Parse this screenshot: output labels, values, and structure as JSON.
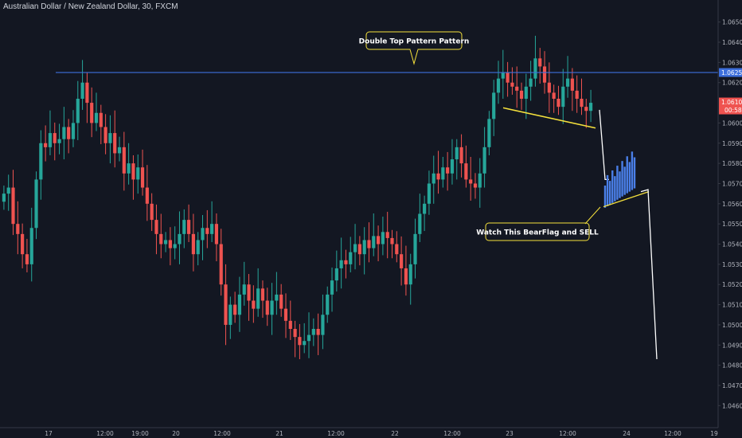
{
  "title": "Australian Dollar / New Zealand Dollar, 30, FXCM",
  "chart_data": {
    "type": "candlestick",
    "symbol": "AUDNZD",
    "interval": "30",
    "source": "FXCM",
    "ylim": [
      1.0455,
      1.0655
    ],
    "y_ticks": [
      "1.06500",
      "1.06400",
      "1.06300",
      "1.06200",
      "1.06000",
      "1.05900",
      "1.05800",
      "1.05700",
      "1.05600",
      "1.05500",
      "1.05400",
      "1.05300",
      "1.05200",
      "1.05100",
      "1.05000",
      "1.04900",
      "1.04800",
      "1.04700",
      "1.04600"
    ],
    "x_ticks": [
      "17",
      "12:00",
      "19:00",
      "20",
      "12:00",
      "21",
      "12:00",
      "22",
      "12:00",
      "23",
      "12:00",
      "24",
      "12:00",
      "19"
    ],
    "price_labels": {
      "resistance": "1.06250",
      "last": "1.06104",
      "countdown": "00:58"
    },
    "resistance_level": 1.0625,
    "annotations": [
      "Double Top Pattern Pattern",
      "Watch This BearFlag and SELL"
    ],
    "colors": {
      "up": "#26a69a",
      "down": "#ef5350",
      "background": "#131722",
      "resistance": "#3d6fdc",
      "trendline": "#f5e13c",
      "projection": "#ffffff",
      "flag": "#4a7fe8"
    },
    "series": [
      {
        "name": "price",
        "path": [
          [
            1.0565,
            "f"
          ],
          [
            1.0568,
            "f"
          ],
          [
            1.055,
            "f"
          ],
          [
            1.0545,
            "f"
          ],
          [
            1.0535,
            "f"
          ],
          [
            1.053,
            "f"
          ],
          [
            1.0548,
            "f"
          ],
          [
            1.0572,
            "f"
          ],
          [
            1.059,
            "f"
          ],
          [
            1.0588,
            "f"
          ],
          [
            1.0595,
            "f"
          ],
          [
            1.059,
            "f"
          ],
          [
            1.0592,
            "f"
          ],
          [
            1.0598,
            "f"
          ],
          [
            1.0592,
            "f"
          ],
          [
            1.06,
            "f"
          ],
          [
            1.0612,
            "f"
          ],
          [
            1.062,
            "f"
          ],
          [
            1.061,
            "f"
          ],
          [
            1.06,
            "f"
          ],
          [
            1.0605,
            "f"
          ],
          [
            1.0598,
            "f"
          ],
          [
            1.059,
            "f"
          ],
          [
            1.0595,
            "f"
          ],
          [
            1.0585,
            "f"
          ],
          [
            1.0588,
            "f"
          ],
          [
            1.0575,
            "f"
          ],
          [
            1.058,
            "f"
          ],
          [
            1.0572,
            "f"
          ],
          [
            1.0578,
            "f"
          ],
          [
            1.0568,
            "f"
          ],
          [
            1.056,
            "f"
          ],
          [
            1.0552,
            "f"
          ],
          [
            1.0545,
            "f"
          ],
          [
            1.054,
            "f"
          ],
          [
            1.0542,
            "f"
          ],
          [
            1.0538,
            "f"
          ],
          [
            1.054,
            "f"
          ],
          [
            1.0545,
            "f"
          ],
          [
            1.0552,
            "f"
          ],
          [
            1.0545,
            "f"
          ],
          [
            1.0535,
            "f"
          ],
          [
            1.0542,
            "f"
          ],
          [
            1.0548,
            "f"
          ],
          [
            1.0545,
            "f"
          ],
          [
            1.055,
            "f"
          ],
          [
            1.054,
            "f"
          ],
          [
            1.052,
            "f"
          ],
          [
            1.05,
            "f"
          ],
          [
            1.051,
            "f"
          ],
          [
            1.0505,
            "f"
          ],
          [
            1.0515,
            "f"
          ],
          [
            1.052,
            "f"
          ],
          [
            1.0512,
            "f"
          ],
          [
            1.0508,
            "f"
          ],
          [
            1.0518,
            "f"
          ],
          [
            1.0512,
            "f"
          ],
          [
            1.0505,
            "f"
          ],
          [
            1.0512,
            "f"
          ],
          [
            1.0515,
            "f"
          ],
          [
            1.0508,
            "f"
          ],
          [
            1.0502,
            "f"
          ],
          [
            1.0498,
            "f"
          ],
          [
            1.0494,
            "f"
          ],
          [
            1.049,
            "f"
          ],
          [
            1.0492,
            "f"
          ],
          [
            1.0495,
            "f"
          ],
          [
            1.0498,
            "f"
          ],
          [
            1.0495,
            "f"
          ],
          [
            1.0505,
            "f"
          ],
          [
            1.0515,
            "f"
          ],
          [
            1.0522,
            "f"
          ],
          [
            1.0528,
            "f"
          ],
          [
            1.0532,
            "f"
          ],
          [
            1.053,
            "f"
          ],
          [
            1.0536,
            "f"
          ],
          [
            1.054,
            "f"
          ],
          [
            1.0535,
            "f"
          ],
          [
            1.0542,
            "f"
          ],
          [
            1.0538,
            "f"
          ],
          [
            1.0544,
            "f"
          ],
          [
            1.054,
            "f"
          ],
          [
            1.0546,
            "f"
          ],
          [
            1.0543,
            "f"
          ],
          [
            1.054,
            "f"
          ],
          [
            1.0535,
            "f"
          ],
          [
            1.0528,
            "f"
          ],
          [
            1.052,
            "f"
          ],
          [
            1.053,
            "f"
          ],
          [
            1.0545,
            "f"
          ],
          [
            1.0555,
            "f"
          ],
          [
            1.056,
            "f"
          ],
          [
            1.057,
            "f"
          ],
          [
            1.0575,
            "f"
          ],
          [
            1.0572,
            "f"
          ],
          [
            1.0578,
            "f"
          ],
          [
            1.0575,
            "f"
          ],
          [
            1.0582,
            "f"
          ],
          [
            1.0588,
            "f"
          ],
          [
            1.058,
            "f"
          ],
          [
            1.0572,
            "f"
          ],
          [
            1.057,
            "f"
          ],
          [
            1.0568,
            "f"
          ],
          [
            1.0575,
            "f"
          ],
          [
            1.0588,
            "f"
          ],
          [
            1.0602,
            "f"
          ],
          [
            1.0615,
            "f"
          ],
          [
            1.0622,
            "f"
          ],
          [
            1.0625,
            "f"
          ],
          [
            1.062,
            "f"
          ],
          [
            1.0618,
            "f"
          ],
          [
            1.0616,
            "f"
          ],
          [
            1.0612,
            "f"
          ],
          [
            1.0618,
            "f"
          ],
          [
            1.0622,
            "f"
          ],
          [
            1.0632,
            "f"
          ],
          [
            1.0628,
            "f"
          ],
          [
            1.062,
            "f"
          ],
          [
            1.0615,
            "f"
          ],
          [
            1.0612,
            "f"
          ],
          [
            1.0608,
            "f"
          ],
          [
            1.0618,
            "f"
          ],
          [
            1.0622,
            "f"
          ],
          [
            1.0616,
            "f"
          ],
          [
            1.0612,
            "f"
          ],
          [
            1.0608,
            "f"
          ],
          [
            1.0606,
            "f"
          ],
          [
            1.061,
            "f"
          ]
        ]
      }
    ],
    "projection": {
      "flag_top": 1.0582,
      "flag_bottom": 1.0568,
      "target": 1.0483
    }
  }
}
